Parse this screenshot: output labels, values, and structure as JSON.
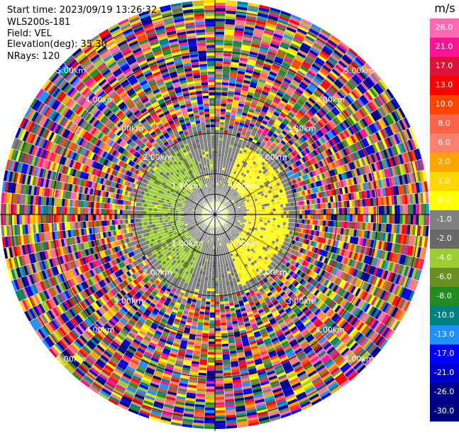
{
  "header": {
    "start_time": "Start time: 2023/09/19 13:26:32",
    "instrument": "WLS200s-181",
    "field": "Field: VEL",
    "elevation": "Elevation(deg): 35.30",
    "nrays": "NRays: 120"
  },
  "chart_data": {
    "type": "heatmap",
    "projection": "polar-ppi",
    "field": "VEL",
    "units": "m/s",
    "n_rays": 120,
    "elevation_deg": 35.3,
    "range_rings_km": [
      1.0,
      2.0,
      3.0,
      4.0,
      5.0
    ],
    "ring_labels": [
      "1.00km",
      "2.00km",
      "3.00km",
      "4.00km",
      "5.00km"
    ],
    "max_range_km": 5.3,
    "colorbar": {
      "unit_label": "m/s",
      "tick_labels": [
        "26.0",
        "21.0",
        "17.0",
        "13.0",
        "10.0",
        "8.0",
        "6.0",
        "2.0",
        "1.0",
        "0.0",
        "-1.0",
        "-2.0",
        "-4.0",
        "-6.0",
        "-8.0",
        "-10.0",
        "-13.0",
        "-17.0",
        "-21.0",
        "-26.0",
        "-30.0"
      ],
      "colors": [
        "#ff69b4",
        "#ff1493",
        "#dc143c",
        "#ff0000",
        "#ff4500",
        "#ff6347",
        "#fa8072",
        "#ffa500",
        "#ffd700",
        "#ffff00",
        "#808080",
        "#696969",
        "#9acd32",
        "#6b8e23",
        "#228b22",
        "#008080",
        "#1e90ff",
        "#0000ff",
        "#0000cd",
        "#00008b",
        "#000080"
      ]
    },
    "velocity_structure": {
      "near_zero_zone_km": [
        0.3,
        1.9
      ],
      "receding_sector_deg": [
        20,
        160
      ],
      "approaching_sector_deg": [
        200,
        340
      ],
      "noise_beyond_km": 2.0
    }
  }
}
